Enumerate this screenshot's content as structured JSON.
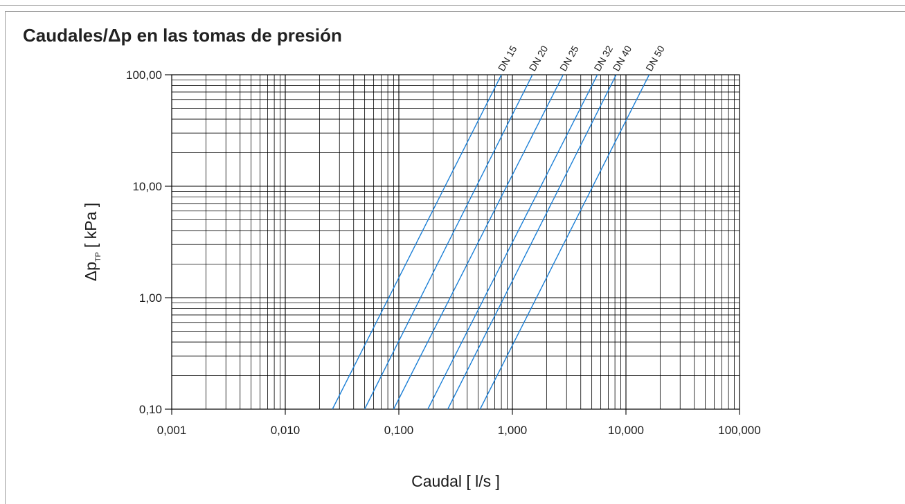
{
  "chart_data": {
    "type": "line",
    "title": "Caudales/Δp en las tomas de presión",
    "xlabel": "Caudal [ l/s ]",
    "ylabel": {
      "main": "Δp",
      "subscript": "TP",
      "unit": "[ kPa ]"
    },
    "x_scale": "log",
    "y_scale": "log",
    "xlim": [
      0.001,
      100
    ],
    "ylim": [
      0.1,
      100
    ],
    "x_ticks": [
      {
        "value": 0.001,
        "label": "0,001"
      },
      {
        "value": 0.01,
        "label": "0,010"
      },
      {
        "value": 0.1,
        "label": "0,100"
      },
      {
        "value": 1,
        "label": "1,000"
      },
      {
        "value": 10,
        "label": "10,000"
      },
      {
        "value": 100,
        "label": "100,000"
      }
    ],
    "y_ticks": [
      {
        "value": 0.1,
        "label": "0,10"
      },
      {
        "value": 1,
        "label": "1,00"
      },
      {
        "value": 10,
        "label": "10,00"
      },
      {
        "value": 100,
        "label": "100,00"
      }
    ],
    "grid": true,
    "line_color": "#1b7fd6",
    "series": [
      {
        "name": "DN 15",
        "x": [
          0.026,
          0.8
        ],
        "y": [
          0.1,
          100
        ]
      },
      {
        "name": "DN 20",
        "x": [
          0.05,
          1.5
        ],
        "y": [
          0.1,
          100
        ]
      },
      {
        "name": "DN 25",
        "x": [
          0.09,
          2.8
        ],
        "y": [
          0.1,
          100
        ]
      },
      {
        "name": "DN 32",
        "x": [
          0.18,
          5.6
        ],
        "y": [
          0.1,
          100
        ]
      },
      {
        "name": "DN 40",
        "x": [
          0.27,
          8.2
        ],
        "y": [
          0.1,
          100
        ]
      },
      {
        "name": "DN 50",
        "x": [
          0.52,
          16
        ],
        "y": [
          0.1,
          100
        ]
      }
    ]
  }
}
